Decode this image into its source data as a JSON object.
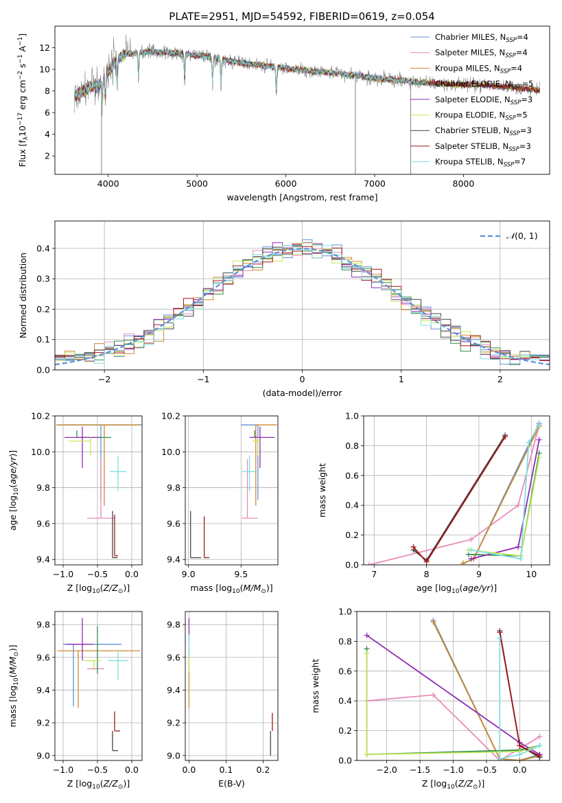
{
  "figure": {
    "title": "PLATE=2951, MJD=54592, FIBERID=0619, z=0.054"
  },
  "colors": {
    "Chabrier MILES": "#5f8fd8",
    "Salpeter MILES": "#e88bb8",
    "Kroupa MILES": "#cc8a2a",
    "Chabrier ELODIE": "#2f8f4f",
    "Salpeter ELODIE": "#8e2bb0",
    "Kroupa ELODIE": "#c4e85a",
    "Chabrier STELIB": "#444444",
    "Salpeter STELIB": "#a01818",
    "Kroupa STELIB": "#7fdede",
    "data": "#7f7f7f",
    "normal": "#5b8fd6"
  },
  "legend": [
    {
      "name": "Chabrier MILES",
      "base": "Chabrier MILES, N",
      "sub": "SSP",
      "tail": "=4"
    },
    {
      "name": "Salpeter MILES",
      "base": "Salpeter MILES, N",
      "sub": "SSP",
      "tail": "=4"
    },
    {
      "name": "Kroupa MILES",
      "base": "Kroupa MILES, N",
      "sub": "SSP",
      "tail": "=4"
    },
    {
      "name": "Chabrier ELODIE",
      "base": "Chabrier ELODIE, N",
      "sub": "SSP",
      "tail": "=5"
    },
    {
      "name": "Salpeter ELODIE",
      "base": "Salpeter ELODIE, N",
      "sub": "SSP",
      "tail": "=3"
    },
    {
      "name": "Kroupa ELODIE",
      "base": "Kroupa ELODIE, N",
      "sub": "SSP",
      "tail": "=5"
    },
    {
      "name": "Chabrier STELIB",
      "base": "Chabrier STELIB, N",
      "sub": "SSP",
      "tail": "=3"
    },
    {
      "name": "Salpeter STELIB",
      "base": "Salpeter STELIB, N",
      "sub": "SSP",
      "tail": "=3"
    },
    {
      "name": "Kroupa STELIB",
      "base": "Kroupa STELIB, N",
      "sub": "SSP",
      "tail": "=7"
    }
  ],
  "chart_data": [
    {
      "id": "spectrum",
      "type": "line",
      "xlabel": "wavelength [Angstrom, rest frame]",
      "ylabel": "Flux [fλ10⁻¹⁷ erg cm⁻² s⁻¹ A⁻¹]",
      "xlim": [
        3400,
        8970
      ],
      "ylim": [
        0.3,
        14.0
      ],
      "xticks": [
        4000,
        5000,
        6000,
        7000,
        8000
      ],
      "yticks": [
        2,
        4,
        6,
        8,
        10,
        12
      ],
      "continuum_x": [
        3620,
        3700,
        3800,
        3900,
        4000,
        4100,
        4200,
        4300,
        4400,
        4500,
        4700,
        4900,
        5100,
        5300,
        5500,
        5700,
        5900,
        6100,
        6300,
        6500,
        6700,
        6900,
        7100,
        7300,
        7500,
        7700,
        7900,
        8100,
        8300,
        8500,
        8700,
        8850
      ],
      "continuum_y": [
        7.5,
        7.9,
        8.4,
        8.5,
        9.8,
        11.0,
        11.4,
        11.5,
        11.6,
        11.6,
        11.5,
        11.4,
        11.2,
        10.9,
        10.6,
        10.4,
        10.2,
        10.0,
        9.8,
        9.7,
        9.5,
        9.3,
        9.1,
        9.0,
        8.8,
        8.7,
        8.6,
        8.6,
        8.5,
        8.4,
        8.2,
        8.1
      ],
      "absorption_lines": [
        3934,
        3969,
        4102,
        4341,
        4861,
        5175,
        5270,
        5893
      ],
      "data_spikes": [
        {
          "x": 3925,
          "y": 0.3
        },
        {
          "x": 6783,
          "y": 0.3
        },
        {
          "x": 7405,
          "y": 0.3
        }
      ],
      "series": [
        "Chabrier MILES",
        "Salpeter MILES",
        "Kroupa MILES",
        "Chabrier ELODIE",
        "Salpeter ELODIE",
        "Kroupa ELODIE",
        "Chabrier STELIB",
        "Salpeter STELIB",
        "Kroupa STELIB"
      ],
      "legend_position": "upper right"
    },
    {
      "id": "residuals",
      "type": "histogram",
      "xlabel": "(data-model)/error",
      "ylabel": "Normed distribution",
      "xlim": [
        -2.5,
        2.5
      ],
      "ylim": [
        0.0,
        0.49
      ],
      "xticks": [
        -2,
        -1,
        0,
        1,
        2
      ],
      "yticks": [
        0.0,
        0.1,
        0.2,
        0.3,
        0.4
      ],
      "bin_width": 0.1,
      "bins_from": -2.5,
      "model_curve": "normal(0,1)",
      "legend": "𝒩(0, 1)",
      "legend_position": "upper right",
      "series_order": [
        "Chabrier MILES",
        "Salpeter MILES",
        "Kroupa MILES",
        "Chabrier ELODIE",
        "Salpeter ELODIE",
        "Kroupa ELODIE",
        "Chabrier STELIB",
        "Salpeter STELIB",
        "Kroupa STELIB"
      ]
    },
    {
      "id": "age_vs_Z",
      "type": "errorbar",
      "xlabel": "Z [log10(Z/Z⊙)]",
      "ylabel": "age [log10(age/yr)]",
      "xlim": [
        -1.12,
        0.15
      ],
      "ylim": [
        9.37,
        10.2
      ],
      "xticks": [
        -1.0,
        -0.5,
        0.0
      ],
      "yticks": [
        9.4,
        9.6,
        9.8,
        10.0,
        10.2
      ],
      "points": [
        {
          "series": "Chabrier MILES",
          "x": -0.45,
          "xerr": [
            0.62,
            0.62
          ],
          "y": 10.15,
          "yerr": [
            0.42,
            0.0
          ]
        },
        {
          "series": "Kroupa MILES",
          "x": -0.4,
          "xerr": [
            0.7,
            0.52
          ],
          "y": 10.15,
          "yerr": [
            0.45,
            0.0
          ]
        },
        {
          "series": "Salpeter MILES",
          "x": -0.45,
          "xerr": [
            0.2,
            0.2
          ],
          "y": 9.63,
          "yerr": [
            0.0,
            0.33
          ]
        },
        {
          "series": "Chabrier ELODIE",
          "x": -0.8,
          "xerr": [
            0.0,
            0.5
          ],
          "y": 10.08,
          "yerr": [
            0.0,
            0.04
          ]
        },
        {
          "series": "Salpeter ELODIE",
          "x": -0.72,
          "xerr": [
            0.26,
            0.26
          ],
          "y": 10.08,
          "yerr": [
            0.17,
            0.06
          ]
        },
        {
          "series": "Kroupa ELODIE",
          "x": -0.6,
          "xerr": [
            0.32,
            0.0
          ],
          "y": 10.06,
          "yerr": [
            0.08,
            0.02
          ]
        },
        {
          "series": "Kroupa STELIB",
          "x": -0.2,
          "xerr": [
            0.12,
            0.12
          ],
          "y": 9.89,
          "yerr": [
            0.11,
            0.09
          ]
        },
        {
          "series": "Chabrier STELIB",
          "x": -0.28,
          "xerr": [
            0.0,
            0.07
          ],
          "y": 9.41,
          "yerr": [
            0.0,
            0.26
          ]
        },
        {
          "series": "Salpeter STELIB",
          "x": -0.25,
          "xerr": [
            0.0,
            0.05
          ],
          "y": 9.42,
          "yerr": [
            0.0,
            0.23
          ]
        }
      ]
    },
    {
      "id": "age_vs_mass",
      "type": "errorbar",
      "xlabel": "mass [log10(M/M⊙)]",
      "ylabel": "",
      "xlim": [
        8.97,
        9.85
      ],
      "ylim": [
        9.37,
        10.2
      ],
      "xticks": [
        9.0,
        9.5
      ],
      "yticks": [
        9.4,
        9.6,
        9.8,
        10.0,
        10.2
      ],
      "points": [
        {
          "series": "Chabrier MILES",
          "x": 9.66,
          "xerr": [
            0.16,
            0.0
          ],
          "y": 10.15,
          "yerr": [
            0.42,
            0.0
          ]
        },
        {
          "series": "Kroupa MILES",
          "x": 9.64,
          "xerr": [
            0.0,
            0.2
          ],
          "y": 10.15,
          "yerr": [
            0.45,
            0.0
          ]
        },
        {
          "series": "Salpeter MILES",
          "x": 9.56,
          "xerr": [
            0.05,
            0.1
          ],
          "y": 9.63,
          "yerr": [
            0.0,
            0.33
          ]
        },
        {
          "series": "Chabrier ELODIE",
          "x": 9.63,
          "xerr": [
            0.0,
            0.04
          ],
          "y": 10.08,
          "yerr": [
            0.0,
            0.04
          ]
        },
        {
          "series": "Salpeter ELODIE",
          "x": 9.68,
          "xerr": [
            0.1,
            0.14
          ],
          "y": 10.08,
          "yerr": [
            0.17,
            0.06
          ]
        },
        {
          "series": "Kroupa ELODIE",
          "x": 9.66,
          "xerr": [
            0.05,
            0.02
          ],
          "y": 10.06,
          "yerr": [
            0.08,
            0.02
          ]
        },
        {
          "series": "Kroupa STELIB",
          "x": 9.58,
          "xerr": [
            0.07,
            0.07
          ],
          "y": 9.89,
          "yerr": [
            0.11,
            0.09
          ]
        },
        {
          "series": "Chabrier STELIB",
          "x": 9.02,
          "xerr": [
            0.0,
            0.1
          ],
          "y": 9.41,
          "yerr": [
            0.0,
            0.26
          ]
        },
        {
          "series": "Salpeter STELIB",
          "x": 9.15,
          "xerr": [
            0.0,
            0.05
          ],
          "y": 9.41,
          "yerr": [
            0.0,
            0.23
          ]
        }
      ]
    },
    {
      "id": "mass_weight_vs_age",
      "type": "line",
      "xlabel": "age [log10(age/yr)]",
      "ylabel": "mass weight",
      "xlim": [
        6.8,
        10.35
      ],
      "ylim": [
        0.0,
        1.0
      ],
      "xticks": [
        7,
        8,
        9,
        10
      ],
      "yticks": [
        0.0,
        0.2,
        0.4,
        0.6,
        0.8,
        1.0
      ],
      "series": [
        {
          "name": "Chabrier MILES",
          "x": [
            8.7,
            8.9,
            10.15
          ],
          "y": [
            0.01,
            0.04,
            0.95
          ]
        },
        {
          "name": "Salpeter MILES",
          "x": [
            6.9,
            8.85,
            9.75,
            10.15
          ],
          "y": [
            0.0,
            0.17,
            0.4,
            0.94
          ]
        },
        {
          "name": "Kroupa MILES",
          "x": [
            8.7,
            8.9,
            10.15
          ],
          "y": [
            0.01,
            0.04,
            0.93
          ]
        },
        {
          "name": "Chabrier ELODIE",
          "x": [
            8.8,
            9.8,
            10.15
          ],
          "y": [
            0.07,
            0.06,
            0.75
          ]
        },
        {
          "name": "Salpeter ELODIE",
          "x": [
            8.85,
            9.75,
            10.15
          ],
          "y": [
            0.04,
            0.12,
            0.84
          ]
        },
        {
          "name": "Kroupa ELODIE",
          "x": [
            8.8,
            9.8,
            10.15
          ],
          "y": [
            0.1,
            0.06,
            0.72
          ]
        },
        {
          "name": "Chabrier STELIB",
          "x": [
            7.75,
            8.0,
            9.5
          ],
          "y": [
            0.1,
            0.03,
            0.87
          ]
        },
        {
          "name": "Salpeter STELIB",
          "x": [
            7.75,
            8.0,
            9.5
          ],
          "y": [
            0.12,
            0.02,
            0.86
          ]
        },
        {
          "name": "Kroupa STELIB",
          "x": [
            8.85,
            9.8,
            9.95,
            10.15
          ],
          "y": [
            0.1,
            0.04,
            0.82,
            0.94
          ]
        }
      ]
    },
    {
      "id": "mass_vs_Z",
      "type": "errorbar",
      "xlabel": "Z [log10(Z/Z⊙)]",
      "ylabel": "mass [log10(M/M⊙)]",
      "xlim": [
        -1.12,
        0.15
      ],
      "ylim": [
        8.97,
        9.88
      ],
      "xticks": [
        -1.0,
        -0.5,
        0.0
      ],
      "yticks": [
        9.0,
        9.2,
        9.4,
        9.6,
        9.8
      ],
      "points": [
        {
          "series": "Chabrier MILES",
          "x": -0.85,
          "xerr": [
            0.15,
            0.7
          ],
          "y": 9.68,
          "yerr": [
            0.38,
            0.0
          ]
        },
        {
          "series": "Kroupa MILES",
          "x": -0.78,
          "xerr": [
            0.3,
            0.9
          ],
          "y": 9.64,
          "yerr": [
            0.35,
            0.0
          ]
        },
        {
          "series": "Salpeter MILES",
          "x": -0.5,
          "xerr": [
            0.15,
            0.1
          ],
          "y": 9.53,
          "yerr": [
            0.0,
            0.12
          ]
        },
        {
          "series": "Chabrier ELODIE",
          "x": -0.5,
          "xerr": [
            0.0,
            0.0
          ],
          "y": 9.63,
          "yerr": [
            0.13,
            0.16
          ]
        },
        {
          "series": "Salpeter ELODIE",
          "x": -0.72,
          "xerr": [
            0.24,
            0.16
          ],
          "y": 9.68,
          "yerr": [
            0.1,
            0.16
          ]
        },
        {
          "series": "Kroupa ELODIE",
          "x": -0.55,
          "xerr": [
            0.15,
            0.1
          ],
          "y": 9.58,
          "yerr": [
            0.06,
            0.0
          ]
        },
        {
          "series": "Kroupa STELIB",
          "x": -0.2,
          "xerr": [
            0.15,
            0.15
          ],
          "y": 9.58,
          "yerr": [
            0.12,
            0.06
          ]
        },
        {
          "series": "Chabrier STELIB",
          "x": -0.28,
          "xerr": [
            0.0,
            0.08
          ],
          "y": 9.03,
          "yerr": [
            0.0,
            0.12
          ]
        },
        {
          "series": "Salpeter STELIB",
          "x": -0.25,
          "xerr": [
            0.0,
            0.08
          ],
          "y": 9.15,
          "yerr": [
            0.0,
            0.12
          ]
        }
      ]
    },
    {
      "id": "mass_vs_ebv",
      "type": "errorbar",
      "xlabel": "E(B-V)",
      "ylabel": "",
      "xlim": [
        -0.01,
        0.24
      ],
      "ylim": [
        8.97,
        9.88
      ],
      "xticks": [
        0.0,
        0.1,
        0.2
      ],
      "yticks": [
        9.0,
        9.2,
        9.4,
        9.6,
        9.8
      ],
      "points": [
        {
          "series": "Salpeter MILES",
          "x": 0.0,
          "xerr": [
            0,
            0
          ],
          "y": 9.54,
          "yerr": [
            0.1,
            0.1
          ]
        },
        {
          "series": "Kroupa MILES",
          "x": 0.0,
          "xerr": [
            0,
            0
          ],
          "y": 9.46,
          "yerr": [
            0.17,
            0.2
          ]
        },
        {
          "series": "Salpeter ELODIE",
          "x": 0.0,
          "xerr": [
            0,
            0
          ],
          "y": 9.72,
          "yerr": [
            0.05,
            0.12
          ]
        },
        {
          "series": "Kroupa ELODIE",
          "x": 0.0,
          "xerr": [
            0,
            0
          ],
          "y": 9.56,
          "yerr": [
            0.05,
            0.1
          ]
        },
        {
          "series": "Kroupa STELIB",
          "x": 0.0,
          "xerr": [
            0,
            0
          ],
          "y": 9.66,
          "yerr": [
            0.06,
            0.08
          ]
        },
        {
          "series": "Chabrier STELIB",
          "x": 0.22,
          "xerr": [
            0,
            0
          ],
          "y": 9.1,
          "yerr": [
            0.1,
            0.05
          ]
        },
        {
          "series": "Salpeter STELIB",
          "x": 0.225,
          "xerr": [
            0,
            0
          ],
          "y": 9.2,
          "yerr": [
            0.05,
            0.06
          ]
        }
      ]
    },
    {
      "id": "mass_weight_vs_Z",
      "type": "line",
      "xlabel": "Z [log10(Z/Z⊙)]",
      "ylabel": "mass weight",
      "xlim": [
        -2.45,
        0.45
      ],
      "ylim": [
        0.0,
        1.0
      ],
      "xticks": [
        -2.0,
        -1.5,
        -1.0,
        -0.5,
        0.0
      ],
      "yticks": [
        0.0,
        0.2,
        0.4,
        0.6,
        0.8,
        1.0
      ],
      "series": [
        {
          "name": "Chabrier MILES",
          "x": [
            -1.3,
            -0.3,
            0.0,
            0.3
          ],
          "y": [
            0.94,
            0.01,
            0.0,
            0.04
          ]
        },
        {
          "name": "Salpeter MILES",
          "x": [
            -2.3,
            -1.3,
            -0.3,
            0.3
          ],
          "y": [
            0.4,
            0.44,
            0.0,
            0.16
          ]
        },
        {
          "name": "Kroupa MILES",
          "x": [
            -1.3,
            -0.3,
            0.0,
            0.3
          ],
          "y": [
            0.93,
            0.01,
            0.0,
            0.03
          ]
        },
        {
          "name": "Chabrier ELODIE",
          "x": [
            -2.3,
            -2.3,
            0.0,
            0.3
          ],
          "y": [
            0.75,
            0.04,
            0.07,
            0.1
          ]
        },
        {
          "name": "Salpeter ELODIE",
          "x": [
            -2.3,
            0.0,
            0.3
          ],
          "y": [
            0.84,
            0.12,
            0.04
          ]
        },
        {
          "name": "Kroupa ELODIE",
          "x": [
            -2.3,
            -2.3,
            0.0,
            0.3
          ],
          "y": [
            0.72,
            0.04,
            0.06,
            0.1
          ]
        },
        {
          "name": "Chabrier STELIB",
          "x": [
            -0.3,
            0.0,
            0.3
          ],
          "y": [
            0.87,
            0.1,
            0.02
          ]
        },
        {
          "name": "Salpeter STELIB",
          "x": [
            -0.3,
            0.0,
            0.3
          ],
          "y": [
            0.86,
            0.1,
            0.03
          ]
        },
        {
          "name": "Kroupa STELIB",
          "x": [
            -0.3,
            -0.3,
            0.0,
            0.3
          ],
          "y": [
            0.82,
            0.01,
            0.04,
            0.1
          ]
        }
      ]
    }
  ]
}
